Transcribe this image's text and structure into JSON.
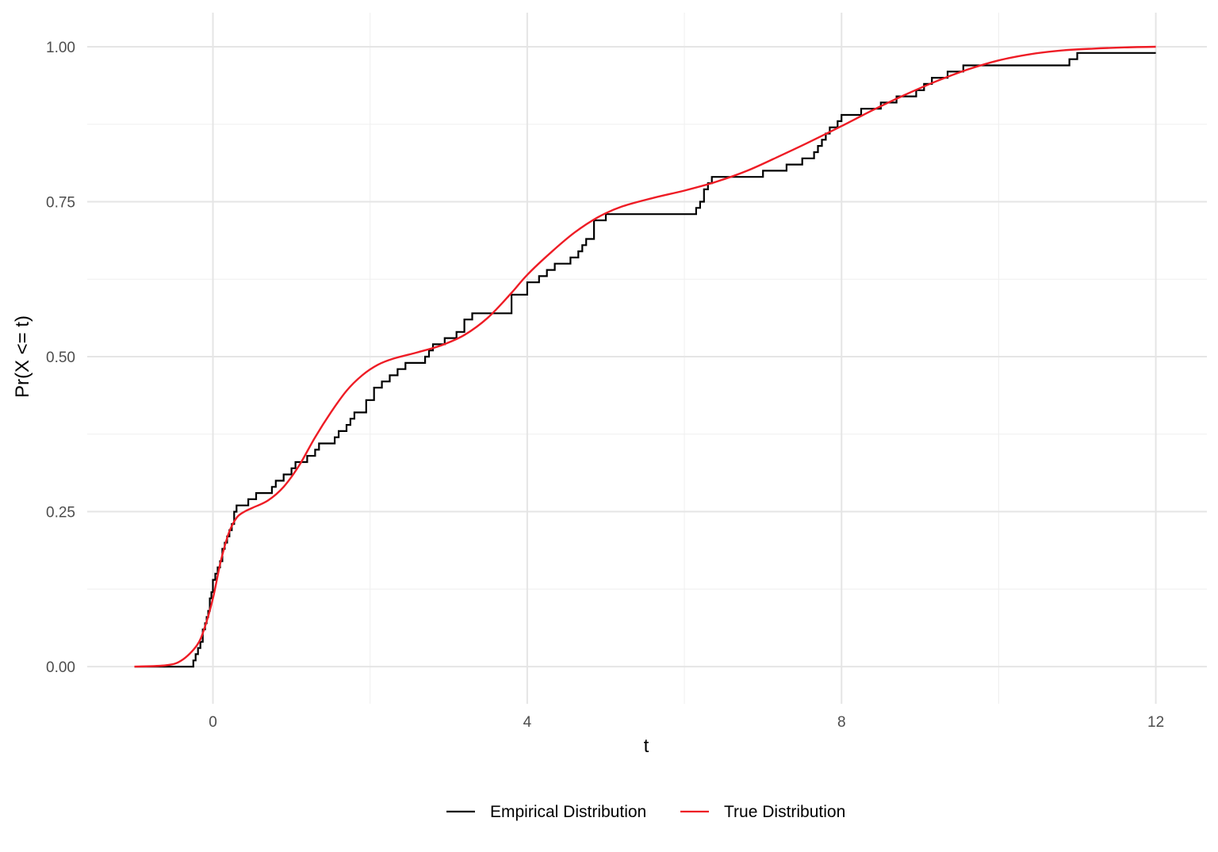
{
  "chart_data": {
    "type": "line",
    "xlabel": "t",
    "ylabel": "Pr(X <= t)",
    "xlim": [
      -1.6,
      12.65
    ],
    "ylim": [
      -0.06,
      1.055
    ],
    "x_ticks": [
      0,
      4,
      8,
      12
    ],
    "x_tick_labels": [
      "0",
      "4",
      "8",
      "12"
    ],
    "x_minor_ticks": [
      2,
      6,
      10
    ],
    "y_ticks": [
      0,
      0.25,
      0.5,
      0.75,
      1
    ],
    "y_tick_labels": [
      "0.00",
      "0.25",
      "0.50",
      "0.75",
      "1.00"
    ],
    "y_minor_ticks": [
      0.125,
      0.375,
      0.625,
      0.875
    ],
    "grid": true,
    "legend_position": "bottom",
    "colors": {
      "empirical": "#000000",
      "true": "#ee1c25",
      "grid_major": "#e5e5e5",
      "grid_minor": "#f0f0f0"
    },
    "series": [
      {
        "name": "Empirical Distribution",
        "kind": "step",
        "x": [
          -1,
          -0.25,
          -0.22,
          -0.19,
          -0.16,
          -0.13,
          -0.1,
          -0.08,
          -0.06,
          -0.04,
          -0.02,
          0.0,
          0.03,
          0.06,
          0.09,
          0.12,
          0.15,
          0.18,
          0.21,
          0.24,
          0.27,
          0.3,
          0.45,
          0.55,
          0.75,
          0.8,
          0.9,
          1.0,
          1.05,
          1.2,
          1.3,
          1.35,
          1.55,
          1.6,
          1.7,
          1.75,
          1.8,
          1.95,
          2.05,
          2.15,
          2.25,
          2.35,
          2.45,
          2.7,
          2.75,
          2.8,
          2.95,
          3.1,
          3.2,
          3.3,
          3.8,
          4.0,
          4.15,
          4.25,
          4.35,
          4.55,
          4.65,
          4.7,
          4.75,
          4.85,
          5.0,
          6.15,
          6.2,
          6.25,
          6.3,
          6.35,
          7.0,
          7.25,
          7.3,
          7.5,
          7.65,
          7.7,
          7.75,
          7.8,
          7.85,
          7.9,
          7.95,
          8.0,
          8.25,
          8.4,
          8.5,
          8.7,
          8.95,
          9.0,
          9.05,
          9.15,
          9.35,
          9.5,
          9.55,
          9.65,
          9.8,
          10.0,
          10.9,
          11.0,
          11.1,
          12.0
        ],
        "y": [
          0.0,
          0.01,
          0.02,
          0.03,
          0.04,
          0.06,
          0.07,
          0.08,
          0.09,
          0.11,
          0.12,
          0.14,
          0.15,
          0.16,
          0.17,
          0.19,
          0.2,
          0.21,
          0.22,
          0.23,
          0.25,
          0.26,
          0.27,
          0.28,
          0.29,
          0.3,
          0.31,
          0.32,
          0.33,
          0.34,
          0.35,
          0.36,
          0.37,
          0.38,
          0.39,
          0.4,
          0.41,
          0.43,
          0.45,
          0.46,
          0.47,
          0.48,
          0.49,
          0.5,
          0.51,
          0.52,
          0.53,
          0.54,
          0.56,
          0.57,
          0.6,
          0.62,
          0.63,
          0.64,
          0.65,
          0.66,
          0.67,
          0.68,
          0.69,
          0.72,
          0.73,
          0.74,
          0.75,
          0.77,
          0.78,
          0.79,
          0.8,
          0.8,
          0.81,
          0.82,
          0.83,
          0.84,
          0.85,
          0.86,
          0.87,
          0.87,
          0.88,
          0.89,
          0.9,
          0.9,
          0.91,
          0.92,
          0.93,
          0.93,
          0.94,
          0.95,
          0.96,
          0.96,
          0.97,
          0.97,
          0.97,
          0.97,
          0.98,
          0.99,
          0.99,
          0.99
        ]
      },
      {
        "name": "True Distribution",
        "kind": "line",
        "x": [
          -1.0,
          -0.6,
          -0.4,
          -0.2,
          -0.1,
          0.0,
          0.1,
          0.2,
          0.3,
          0.4,
          0.5,
          0.7,
          0.9,
          1.1,
          1.3,
          1.5,
          1.7,
          1.9,
          2.1,
          2.3,
          2.6,
          2.9,
          3.2,
          3.5,
          3.8,
          4.0,
          4.3,
          4.6,
          4.9,
          5.2,
          5.6,
          6.0,
          6.4,
          6.8,
          7.2,
          7.6,
          8.0,
          8.4,
          8.8,
          9.2,
          9.6,
          10.0,
          10.4,
          10.8,
          11.2,
          11.6,
          12.0
        ],
        "y": [
          0.0,
          0.002,
          0.01,
          0.035,
          0.065,
          0.11,
          0.17,
          0.215,
          0.24,
          0.25,
          0.256,
          0.268,
          0.29,
          0.325,
          0.37,
          0.41,
          0.445,
          0.47,
          0.487,
          0.497,
          0.507,
          0.518,
          0.535,
          0.563,
          0.603,
          0.632,
          0.668,
          0.7,
          0.725,
          0.742,
          0.756,
          0.768,
          0.782,
          0.8,
          0.823,
          0.847,
          0.872,
          0.898,
          0.922,
          0.944,
          0.963,
          0.978,
          0.988,
          0.994,
          0.997,
          0.999,
          1.0
        ]
      }
    ]
  }
}
